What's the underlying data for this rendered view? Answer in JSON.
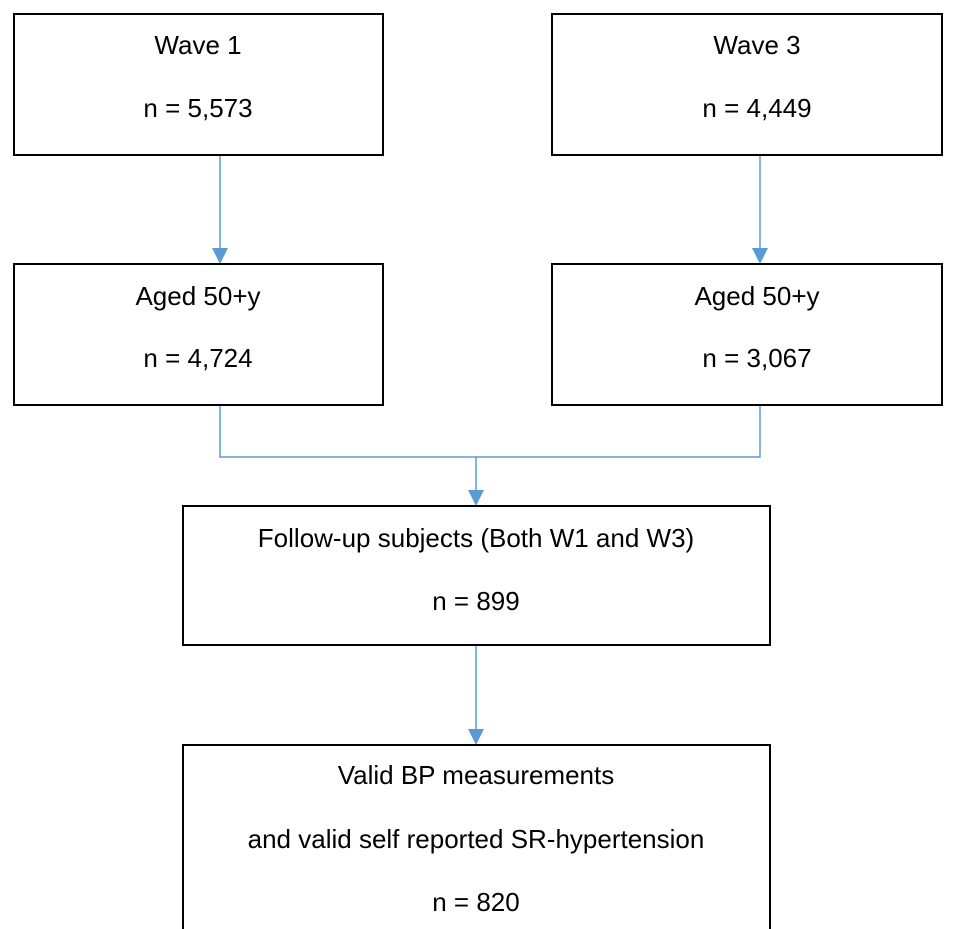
{
  "nodes": [
    {
      "lines": [
        "Wave 1",
        "n = 5,573"
      ]
    },
    {
      "lines": [
        "Wave 3",
        "n = 4,449"
      ]
    },
    {
      "lines": [
        "Aged 50+y",
        "n = 4,724"
      ]
    },
    {
      "lines": [
        "Aged 50+y",
        "n = 3,067"
      ]
    },
    {
      "lines": [
        "Follow-up subjects (Both W1 and W3)",
        "n = 899"
      ]
    },
    {
      "lines": [
        "Valid BP measurements",
        "and valid self reported SR-hypertension",
        "n = 820"
      ]
    }
  ]
}
